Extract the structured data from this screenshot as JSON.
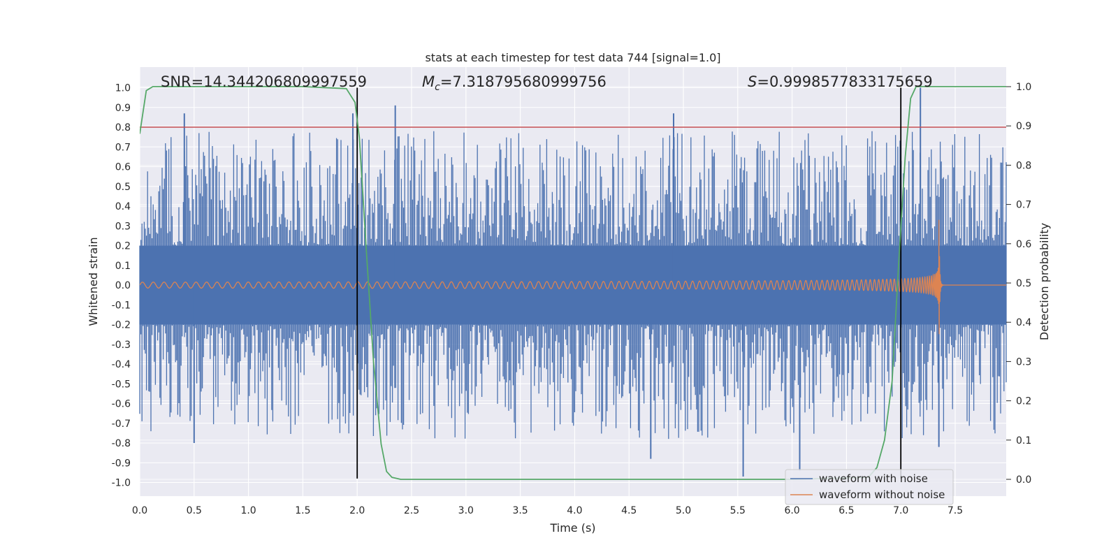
{
  "chart_data": {
    "type": "line",
    "title": "stats at each timestep for test data 744 [signal=1.0]",
    "xlabel": "Time (s)",
    "ylabel": "Whitened strain",
    "y2label": "Detection probability",
    "xlim": [
      0.0,
      8.0
    ],
    "ylim": [
      -1.08,
      1.1
    ],
    "y2lim": [
      -0.047,
      1.0395
    ],
    "x_ticks": [
      "0.0",
      "0.5",
      "1.0",
      "1.5",
      "2.0",
      "2.5",
      "3.0",
      "3.5",
      "4.0",
      "4.5",
      "5.0",
      "5.5",
      "6.0",
      "6.5",
      "7.0",
      "7.5"
    ],
    "y_ticks": [
      "1.0",
      "0.9",
      "0.8",
      "0.7",
      "0.6",
      "0.5",
      "0.4",
      "0.3",
      "0.2",
      "0.1",
      "0.0",
      "-0.1",
      "-0.2",
      "-0.3",
      "-0.4",
      "-0.5",
      "-0.6",
      "-0.7",
      "-0.8",
      "-0.9",
      "-1.0"
    ],
    "y2_ticks": [
      "1.0",
      "0.9",
      "0.8",
      "0.7",
      "0.6",
      "0.5",
      "0.4",
      "0.3",
      "0.2",
      "0.1",
      "0.0"
    ],
    "grid": true,
    "legend_position": "lower right",
    "annotations": {
      "snr": "SNR=14.344206809997559",
      "mc_symbol": "M",
      "mc_sub": "c",
      "mc_value": "=7.318795680999756",
      "s_symbol": "S",
      "s_value": "=0.9998577833175659"
    },
    "threshold_line": {
      "y": 0.8,
      "color": "#c44e52"
    },
    "vertical_lines": [
      2.0,
      7.0
    ],
    "series": [
      {
        "name": "waveform with noise",
        "color": "#4c72b0",
        "core_envelope": 0.2,
        "notable_spikes": [
          {
            "x": 0.41,
            "y": 0.87
          },
          {
            "x": 0.5,
            "y": -0.8
          },
          {
            "x": 1.96,
            "y": 0.87
          },
          {
            "x": 2.35,
            "y": 0.91
          },
          {
            "x": 4.7,
            "y": -0.88
          },
          {
            "x": 4.91,
            "y": 0.87
          },
          {
            "x": 5.55,
            "y": -0.97
          },
          {
            "x": 6.07,
            "y": -0.94
          },
          {
            "x": 7.18,
            "y": 1.0
          },
          {
            "x": 7.35,
            "y": -0.82
          }
        ]
      },
      {
        "name": "waveform without noise",
        "color": "#dd8452",
        "amplitude_start": 0.015,
        "merger_time": 7.35,
        "peak_amplitude": [
          0.32,
          -0.48
        ]
      },
      {
        "name": "detection probability",
        "color": "#55a868",
        "axis": "right",
        "x": [
          0.0,
          0.06,
          0.12,
          0.5,
          1.0,
          1.5,
          1.9,
          1.98,
          2.02,
          2.08,
          2.15,
          2.22,
          2.27,
          2.32,
          2.4,
          3.0,
          4.0,
          5.0,
          6.0,
          6.7,
          6.78,
          6.85,
          6.92,
          6.98,
          7.04,
          7.09,
          7.14,
          7.2,
          7.5,
          8.0
        ],
        "y": [
          0.88,
          0.99,
          1.0,
          1.0,
          1.0,
          1.0,
          0.995,
          0.96,
          0.87,
          0.6,
          0.3,
          0.09,
          0.02,
          0.005,
          0.0,
          0.0,
          0.0,
          0.0,
          0.0,
          0.005,
          0.03,
          0.1,
          0.25,
          0.55,
          0.82,
          0.97,
          1.0,
          1.0,
          1.0,
          1.0
        ]
      }
    ]
  }
}
